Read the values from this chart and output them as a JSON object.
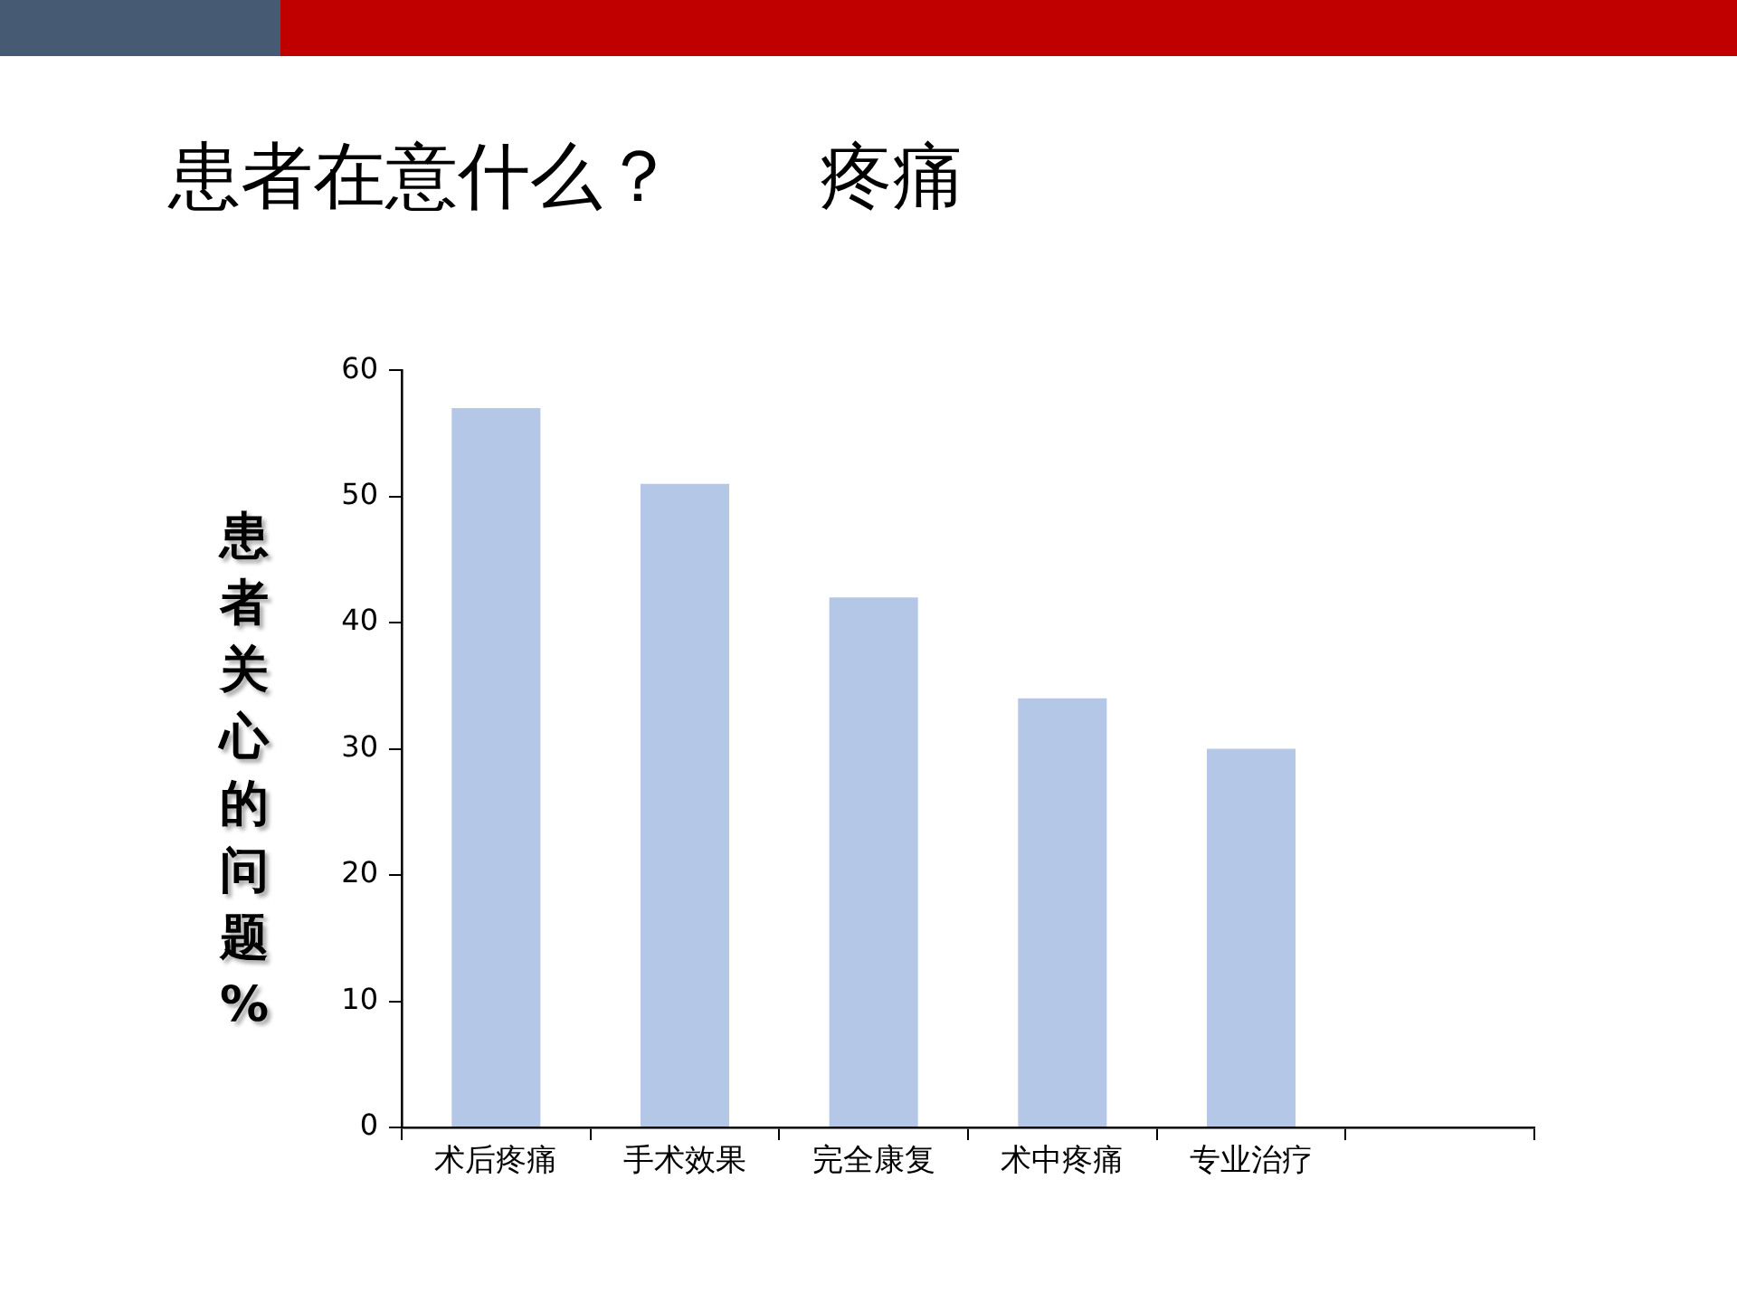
{
  "chart_data": {
    "type": "bar",
    "title": "患者在意什么？　　疼痛",
    "ylabel": "患者关心的问题%",
    "categories": [
      "术后疼痛",
      "手术效果",
      "完全康复",
      "术中疼痛",
      "专业治疗",
      null
    ],
    "values": [
      57,
      51,
      42,
      34,
      30,
      null
    ],
    "color": "#b4c7e7",
    "ylim": [
      0,
      60
    ],
    "yticks": [
      0,
      10,
      20,
      30,
      40,
      50,
      60
    ],
    "grid": false,
    "legend": false
  }
}
